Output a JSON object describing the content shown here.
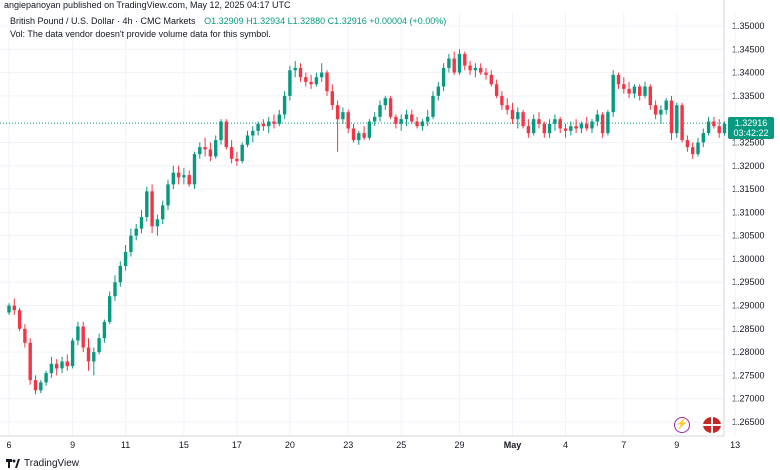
{
  "header": {
    "published_line": "angiepanoyan published on TradingView.com, May 12, 2025 04:17 UTC"
  },
  "legend": {
    "symbol": "British Pound / U.S. Dollar · 4h · CMC Markets",
    "ohlc": "O1.32909  H1.32934  L1.32880  C1.32916  +0.00004 (+0.00%)",
    "volume_note": "Vol: The data vendor doesn't provide volume data for this symbol."
  },
  "price_label": {
    "price": "1.32916",
    "countdown": "03:42:22"
  },
  "footer": {
    "brand": "TradingView"
  },
  "colors": {
    "up": "#089981",
    "down": "#f23645",
    "grid": "#f0f3fa",
    "axis_text": "#131722"
  },
  "chart_data": {
    "type": "candlestick",
    "instrument": "GBP/USD",
    "timeframe": "4h",
    "ylim": [
      1.262,
      1.353
    ],
    "last_price": 1.32916,
    "y_ticks": [
      "1.35000",
      "1.34500",
      "1.34000",
      "1.33500",
      "1.32500",
      "1.32000",
      "1.31500",
      "1.31000",
      "1.30500",
      "1.30000",
      "1.29500",
      "1.29000",
      "1.28500",
      "1.28000",
      "1.27500",
      "1.27000",
      "1.26500"
    ],
    "x_ticks": [
      {
        "label": "6",
        "index": 0
      },
      {
        "label": "9",
        "index": 12
      },
      {
        "label": "11",
        "index": 22
      },
      {
        "label": "15",
        "index": 33
      },
      {
        "label": "17",
        "index": 43
      },
      {
        "label": "20",
        "index": 53
      },
      {
        "label": "23",
        "index": 64
      },
      {
        "label": "25",
        "index": 74
      },
      {
        "label": "29",
        "index": 85
      },
      {
        "label": "May",
        "index": 95
      },
      {
        "label": "4",
        "index": 105
      },
      {
        "label": "7",
        "index": 116
      },
      {
        "label": "9",
        "index": 126
      },
      {
        "label": "13",
        "index": 137
      }
    ],
    "candles": [
      [
        1.2885,
        1.2905,
        1.288,
        1.29
      ],
      [
        1.29,
        1.2915,
        1.288,
        1.289
      ],
      [
        1.289,
        1.2895,
        1.2845,
        1.285
      ],
      [
        1.285,
        1.286,
        1.281,
        1.282
      ],
      [
        1.282,
        1.283,
        1.273,
        1.274
      ],
      [
        1.274,
        1.275,
        1.271,
        1.2718
      ],
      [
        1.2718,
        1.274,
        1.2712,
        1.2735
      ],
      [
        1.2735,
        1.276,
        1.2728,
        1.2755
      ],
      [
        1.2755,
        1.279,
        1.2745,
        1.2775
      ],
      [
        1.2775,
        1.2785,
        1.275,
        1.2765
      ],
      [
        1.2765,
        1.279,
        1.2755,
        1.278
      ],
      [
        1.278,
        1.2795,
        1.276,
        1.277
      ],
      [
        1.277,
        1.283,
        1.2765,
        1.2825
      ],
      [
        1.2825,
        1.2865,
        1.2815,
        1.2855
      ],
      [
        1.2855,
        1.2865,
        1.28,
        1.281
      ],
      [
        1.281,
        1.283,
        1.276,
        1.278
      ],
      [
        1.278,
        1.281,
        1.275,
        1.28
      ],
      [
        1.28,
        1.284,
        1.2795,
        1.283
      ],
      [
        1.283,
        1.287,
        1.282,
        1.2865
      ],
      [
        1.2865,
        1.293,
        1.286,
        1.292
      ],
      [
        1.292,
        1.2965,
        1.291,
        1.295
      ],
      [
        1.295,
        1.2995,
        1.294,
        1.2985
      ],
      [
        1.2985,
        1.303,
        1.2975,
        1.3015
      ],
      [
        1.3015,
        1.3065,
        1.3005,
        1.305
      ],
      [
        1.305,
        1.3075,
        1.304,
        1.3065
      ],
      [
        1.3065,
        1.3105,
        1.3055,
        1.309
      ],
      [
        1.309,
        1.3155,
        1.308,
        1.3145
      ],
      [
        1.3145,
        1.316,
        1.3055,
        1.307
      ],
      [
        1.307,
        1.3095,
        1.305,
        1.3085
      ],
      [
        1.3085,
        1.3125,
        1.3075,
        1.3115
      ],
      [
        1.3115,
        1.317,
        1.3105,
        1.316
      ],
      [
        1.316,
        1.32,
        1.315,
        1.3185
      ],
      [
        1.3185,
        1.32,
        1.316,
        1.3175
      ],
      [
        1.3175,
        1.3195,
        1.316,
        1.318
      ],
      [
        1.318,
        1.319,
        1.3155,
        1.316
      ],
      [
        1.316,
        1.323,
        1.315,
        1.3225
      ],
      [
        1.3225,
        1.325,
        1.3215,
        1.324
      ],
      [
        1.324,
        1.326,
        1.322,
        1.3235
      ],
      [
        1.3235,
        1.325,
        1.321,
        1.322
      ],
      [
        1.322,
        1.3265,
        1.3215,
        1.3255
      ],
      [
        1.3255,
        1.33,
        1.3245,
        1.3295
      ],
      [
        1.3295,
        1.33,
        1.3235,
        1.324
      ],
      [
        1.324,
        1.3255,
        1.3205,
        1.3215
      ],
      [
        1.3215,
        1.323,
        1.32,
        1.321
      ],
      [
        1.321,
        1.325,
        1.3205,
        1.3245
      ],
      [
        1.3245,
        1.3275,
        1.324,
        1.3265
      ],
      [
        1.3265,
        1.3285,
        1.325,
        1.3275
      ],
      [
        1.3275,
        1.3295,
        1.3265,
        1.329
      ],
      [
        1.329,
        1.33,
        1.3275,
        1.3285
      ],
      [
        1.3285,
        1.3305,
        1.327,
        1.3295
      ],
      [
        1.3295,
        1.331,
        1.328,
        1.329
      ],
      [
        1.329,
        1.332,
        1.3285,
        1.331
      ],
      [
        1.331,
        1.336,
        1.33,
        1.335
      ],
      [
        1.335,
        1.3415,
        1.334,
        1.3405
      ],
      [
        1.3405,
        1.3425,
        1.339,
        1.341
      ],
      [
        1.341,
        1.342,
        1.338,
        1.339
      ],
      [
        1.339,
        1.34,
        1.337,
        1.338
      ],
      [
        1.338,
        1.3395,
        1.3365,
        1.3375
      ],
      [
        1.3375,
        1.34,
        1.337,
        1.339
      ],
      [
        1.339,
        1.342,
        1.338,
        1.34
      ],
      [
        1.34,
        1.3405,
        1.335,
        1.336
      ],
      [
        1.336,
        1.3375,
        1.332,
        1.333
      ],
      [
        1.333,
        1.334,
        1.323,
        1.33
      ],
      [
        1.33,
        1.3325,
        1.329,
        1.3315
      ],
      [
        1.3315,
        1.332,
        1.327,
        1.328
      ],
      [
        1.328,
        1.329,
        1.325,
        1.3255
      ],
      [
        1.3255,
        1.3275,
        1.3245,
        1.327
      ],
      [
        1.327,
        1.3285,
        1.3255,
        1.326
      ],
      [
        1.326,
        1.33,
        1.3255,
        1.3295
      ],
      [
        1.3295,
        1.3315,
        1.3285,
        1.3305
      ],
      [
        1.3305,
        1.334,
        1.3295,
        1.333
      ],
      [
        1.333,
        1.335,
        1.332,
        1.3345
      ],
      [
        1.3345,
        1.335,
        1.33,
        1.3305
      ],
      [
        1.3305,
        1.331,
        1.328,
        1.329
      ],
      [
        1.329,
        1.331,
        1.3275,
        1.33
      ],
      [
        1.33,
        1.332,
        1.3285,
        1.331
      ],
      [
        1.331,
        1.332,
        1.329,
        1.3295
      ],
      [
        1.3295,
        1.3305,
        1.328,
        1.3285
      ],
      [
        1.3285,
        1.33,
        1.3275,
        1.3295
      ],
      [
        1.3295,
        1.332,
        1.3285,
        1.3305
      ],
      [
        1.3305,
        1.336,
        1.33,
        1.335
      ],
      [
        1.335,
        1.338,
        1.334,
        1.337
      ],
      [
        1.337,
        1.342,
        1.336,
        1.341
      ],
      [
        1.341,
        1.344,
        1.34,
        1.343
      ],
      [
        1.343,
        1.3445,
        1.3395,
        1.34
      ],
      [
        1.34,
        1.345,
        1.3395,
        1.344
      ],
      [
        1.344,
        1.3445,
        1.3405,
        1.3415
      ],
      [
        1.3415,
        1.3425,
        1.3395,
        1.3405
      ],
      [
        1.3405,
        1.342,
        1.339,
        1.341
      ],
      [
        1.341,
        1.342,
        1.3395,
        1.34
      ],
      [
        1.34,
        1.341,
        1.3385,
        1.3395
      ],
      [
        1.3395,
        1.3405,
        1.337,
        1.3375
      ],
      [
        1.3375,
        1.3385,
        1.3345,
        1.335
      ],
      [
        1.335,
        1.336,
        1.332,
        1.333
      ],
      [
        1.333,
        1.3345,
        1.331,
        1.332
      ],
      [
        1.332,
        1.3335,
        1.329,
        1.33
      ],
      [
        1.33,
        1.3325,
        1.328,
        1.3315
      ],
      [
        1.3315,
        1.332,
        1.328,
        1.3285
      ],
      [
        1.3285,
        1.33,
        1.326,
        1.327
      ],
      [
        1.327,
        1.331,
        1.3265,
        1.33
      ],
      [
        1.33,
        1.3315,
        1.328,
        1.329
      ],
      [
        1.329,
        1.3295,
        1.326,
        1.327
      ],
      [
        1.327,
        1.33,
        1.326,
        1.329
      ],
      [
        1.329,
        1.331,
        1.3275,
        1.33
      ],
      [
        1.33,
        1.3305,
        1.327,
        1.328
      ],
      [
        1.328,
        1.329,
        1.326,
        1.3275
      ],
      [
        1.3275,
        1.3295,
        1.3265,
        1.3285
      ],
      [
        1.3285,
        1.33,
        1.327,
        1.328
      ],
      [
        1.328,
        1.3295,
        1.327,
        1.329
      ],
      [
        1.329,
        1.3305,
        1.3275,
        1.328
      ],
      [
        1.328,
        1.33,
        1.327,
        1.3295
      ],
      [
        1.3295,
        1.332,
        1.3285,
        1.331
      ],
      [
        1.331,
        1.3315,
        1.326,
        1.327
      ],
      [
        1.327,
        1.332,
        1.3265,
        1.3315
      ],
      [
        1.3315,
        1.3405,
        1.3305,
        1.3395
      ],
      [
        1.3395,
        1.34,
        1.3365,
        1.3375
      ],
      [
        1.3375,
        1.339,
        1.3355,
        1.3365
      ],
      [
        1.3365,
        1.338,
        1.3345,
        1.3355
      ],
      [
        1.3355,
        1.3375,
        1.3345,
        1.337
      ],
      [
        1.337,
        1.3375,
        1.334,
        1.335
      ],
      [
        1.335,
        1.338,
        1.3345,
        1.337
      ],
      [
        1.337,
        1.3375,
        1.332,
        1.333
      ],
      [
        1.333,
        1.334,
        1.33,
        1.331
      ],
      [
        1.331,
        1.333,
        1.329,
        1.332
      ],
      [
        1.332,
        1.3345,
        1.331,
        1.334
      ],
      [
        1.334,
        1.335,
        1.3255,
        1.327
      ],
      [
        1.327,
        1.3335,
        1.326,
        1.333
      ],
      [
        1.333,
        1.3335,
        1.325,
        1.3255
      ],
      [
        1.3255,
        1.3265,
        1.323,
        1.324
      ],
      [
        1.324,
        1.325,
        1.3215,
        1.3225
      ],
      [
        1.3225,
        1.326,
        1.322,
        1.325
      ],
      [
        1.325,
        1.328,
        1.324,
        1.327
      ],
      [
        1.327,
        1.3305,
        1.3265,
        1.3295
      ],
      [
        1.3295,
        1.3305,
        1.328,
        1.3285
      ],
      [
        1.3285,
        1.33,
        1.326,
        1.327
      ],
      [
        1.327,
        1.3295,
        1.3265,
        1.329
      ],
      [
        1.329,
        1.3293,
        1.3288,
        1.32916
      ]
    ]
  }
}
